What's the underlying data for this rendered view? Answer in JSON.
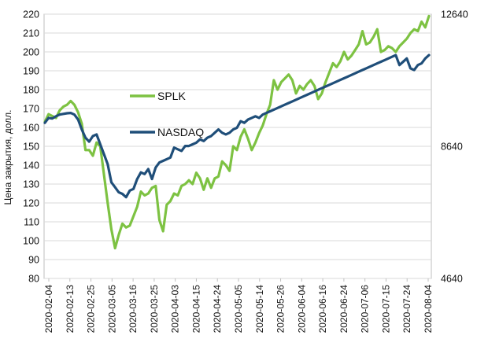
{
  "chart_data": {
    "type": "line",
    "ylabel": "Цена закрытия, долл.",
    "ylim_left": [
      80,
      220
    ],
    "yticks_left": [
      "80",
      "90",
      "100",
      "110",
      "120",
      "130",
      "140",
      "150",
      "160",
      "170",
      "180",
      "190",
      "200",
      "210",
      "220"
    ],
    "ylim_right": [
      4640,
      12640
    ],
    "yticks_right": [
      "4640",
      "8640",
      "12640"
    ],
    "xticks": [
      "2020-02-04",
      "2020-02-13",
      "2020-02-25",
      "2020-03-05",
      "2020-03-16",
      "2020-03-25",
      "2020-04-03",
      "2020-04-15",
      "2020-04-24",
      "2020-05-05",
      "2020-05-14",
      "2020-05-26",
      "2020-06-04",
      "2020-06-16",
      "2020-06-24",
      "2020-07-06",
      "2020-07-15",
      "2020-07-24",
      "2020-08-04"
    ],
    "grid": "horizontal",
    "series": [
      {
        "name": "SPLK",
        "axis": "left",
        "color": "#7dc242",
        "values": [
          163,
          167,
          166,
          165,
          169,
          171,
          172,
          174,
          172,
          168,
          162,
          148,
          148,
          145,
          152,
          150,
          135,
          120,
          106,
          96,
          103,
          109,
          107,
          108,
          113,
          118,
          126,
          124,
          125,
          128,
          129,
          111,
          105,
          119,
          121,
          125,
          124,
          129,
          130,
          132,
          130,
          136,
          133,
          127,
          133,
          128,
          133,
          134,
          142,
          140,
          137,
          150,
          148,
          155,
          159,
          154,
          148,
          152,
          157,
          161,
          167,
          172,
          185,
          180,
          184,
          186,
          188,
          185,
          178,
          182,
          180,
          183,
          185,
          182,
          175,
          178,
          184,
          189,
          194,
          192,
          195,
          200,
          196,
          198,
          201,
          204,
          211,
          204,
          205,
          208,
          212,
          200,
          201,
          203,
          202,
          200,
          203,
          205,
          207,
          210,
          212,
          211,
          216,
          213,
          219
        ]
      },
      {
        "name": "NASDAQ",
        "axis": "right",
        "values": [
          9350,
          9500,
          9480,
          9550,
          9600,
          9620,
          9640,
          9650,
          9600,
          9450,
          9150,
          8900,
          8780,
          8950,
          9000,
          8700,
          8400,
          8100,
          7550,
          7400,
          7250,
          7200,
          7100,
          7300,
          7350,
          7650,
          7850,
          7800,
          7950,
          7650,
          8000,
          8150,
          8200,
          8250,
          8300,
          8600,
          8550,
          8500,
          8650,
          8650,
          8700,
          8750,
          8850,
          8800,
          8900,
          8950,
          9050,
          9150,
          9050,
          9000,
          9050,
          9150,
          9200,
          9400,
          9350,
          9450,
          9500,
          9550,
          9500,
          9600,
          9650,
          9700,
          9750,
          9800,
          9850,
          9900,
          9950,
          10000,
          10050,
          10100,
          10150,
          10200,
          10250,
          10300,
          10350,
          10400,
          10450,
          10500,
          10550,
          10600,
          10650,
          10700,
          10750,
          10800,
          10850,
          10900,
          10950,
          11000,
          11050,
          11100,
          11150,
          11200,
          11250,
          11300,
          11350,
          11400,
          11100,
          11200,
          11300,
          11000,
          10950,
          11100,
          11150,
          11300,
          11400
        ]
      }
    ],
    "legend": [
      {
        "label": "SPLK",
        "color": "#7dc242"
      },
      {
        "label": "NASDAQ",
        "color": "#1f4e79"
      }
    ]
  }
}
